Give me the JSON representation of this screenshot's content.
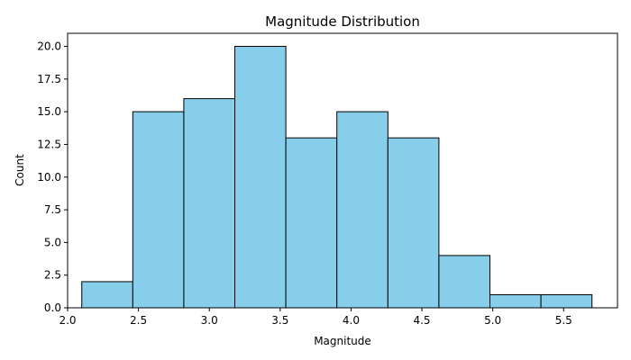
{
  "chart_data": {
    "type": "bar",
    "title": "Magnitude Distribution",
    "xlabel": "Magnitude",
    "ylabel": "Count",
    "bins": [
      {
        "x0": 2.1,
        "x1": 2.46,
        "count": 2
      },
      {
        "x0": 2.46,
        "x1": 2.82,
        "count": 15
      },
      {
        "x0": 2.82,
        "x1": 3.18,
        "count": 16
      },
      {
        "x0": 3.18,
        "x1": 3.54,
        "count": 20
      },
      {
        "x0": 3.54,
        "x1": 3.9,
        "count": 13
      },
      {
        "x0": 3.9,
        "x1": 4.26,
        "count": 15
      },
      {
        "x0": 4.26,
        "x1": 4.62,
        "count": 13
      },
      {
        "x0": 4.62,
        "x1": 4.98,
        "count": 4
      },
      {
        "x0": 4.98,
        "x1": 5.34,
        "count": 1
      },
      {
        "x0": 5.34,
        "x1": 5.7,
        "count": 1
      }
    ],
    "xlim": [
      2.0,
      5.88
    ],
    "ylim": [
      0,
      21
    ],
    "xticks": [
      2.0,
      2.5,
      3.0,
      3.5,
      4.0,
      4.5,
      5.0,
      5.5
    ],
    "xtick_labels": [
      "2.0",
      "2.5",
      "3.0",
      "3.5",
      "4.0",
      "4.5",
      "5.0",
      "5.5"
    ],
    "yticks": [
      0,
      2.5,
      5,
      7.5,
      10,
      12.5,
      15,
      17.5,
      20
    ],
    "ytick_labels": [
      "0.0",
      "2.5",
      "5.0",
      "7.5",
      "10.0",
      "12.5",
      "15.0",
      "17.5",
      "20.0"
    ],
    "grid": false,
    "bar_color": "#87CEEB",
    "edge_color": "#000000"
  }
}
